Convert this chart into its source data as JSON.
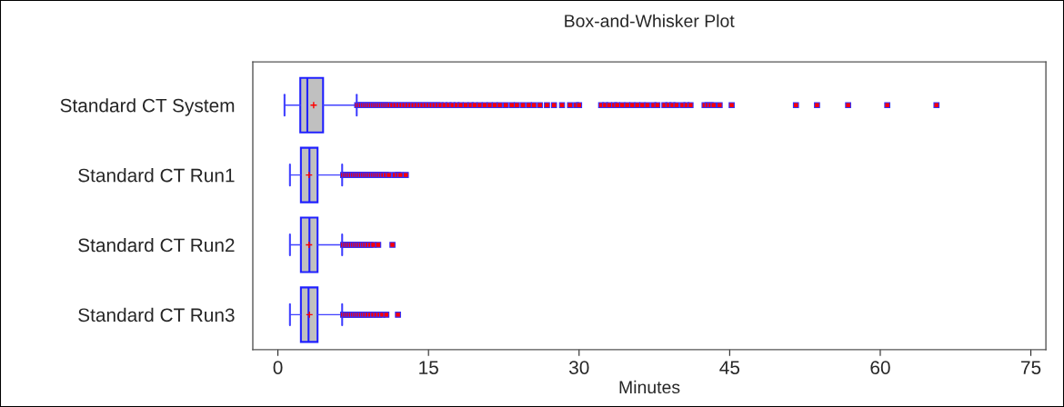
{
  "chart_data": {
    "type": "box",
    "title": "Box-and-Whisker Plot",
    "xlabel": "Minutes",
    "orientation": "horizontal",
    "categories": [
      "Standard CT System",
      "Standard CT Run1",
      "Standard CT Run2",
      "Standard CT Run3"
    ],
    "xlim": [
      -2.5,
      76.5
    ],
    "xticks": [
      0,
      15,
      30,
      45,
      60,
      75
    ],
    "grid": false,
    "boxes": [
      {
        "low": 0.66,
        "q1": 2.23,
        "median": 2.93,
        "q3": 4.5,
        "high": 7.85,
        "mean": 3.56,
        "outliers": [
          7.9,
          8.1,
          8.3,
          8.5,
          8.7,
          8.9,
          9.1,
          9.3,
          9.5,
          9.7,
          9.9,
          10.1,
          10.3,
          10.5,
          10.7,
          10.9,
          11.1,
          11.4,
          11.7,
          12.0,
          12.3,
          12.6,
          12.9,
          13.2,
          13.5,
          13.8,
          14.1,
          14.4,
          14.7,
          15.0,
          15.3,
          15.6,
          15.9,
          16.2,
          16.6,
          17.0,
          17.4,
          17.8,
          18.2,
          18.7,
          19.2,
          19.6,
          20.1,
          20.6,
          21.1,
          21.6,
          22.1,
          22.7,
          23.3,
          23.8,
          24.4,
          25.0,
          25.5,
          26.1,
          26.8,
          27.5,
          28.3,
          29.1,
          29.7,
          30.0,
          32.2,
          32.6,
          33.0,
          33.5,
          33.8,
          34.3,
          34.8,
          35.3,
          35.8,
          36.3,
          36.8,
          37.4,
          37.8,
          38.5,
          38.9,
          39.3,
          39.7,
          40.3,
          40.7,
          41.1,
          42.5,
          42.8,
          43.1,
          43.4,
          44.0,
          45.2,
          51.6,
          53.7,
          56.8,
          60.7,
          65.6
        ]
      },
      {
        "low": 1.2,
        "q1": 2.29,
        "median": 3.14,
        "q3": 3.95,
        "high": 6.4,
        "mean": 3.1,
        "outliers": [
          6.5,
          6.7,
          6.9,
          7.1,
          7.3,
          7.5,
          7.7,
          7.9,
          8.1,
          8.3,
          8.5,
          8.7,
          8.9,
          9.1,
          9.3,
          9.5,
          9.7,
          9.9,
          10.1,
          10.3,
          10.5,
          10.75,
          11.05,
          11.65,
          11.96,
          12.2,
          12.74
        ]
      },
      {
        "low": 1.2,
        "q1": 2.29,
        "median": 3.14,
        "q3": 3.95,
        "high": 6.4,
        "mean": 3.1,
        "outliers": [
          6.5,
          6.7,
          6.9,
          7.1,
          7.3,
          7.5,
          7.7,
          7.9,
          8.1,
          8.3,
          8.5,
          8.7,
          8.93,
          9.2,
          9.5,
          9.99,
          11.41
        ]
      },
      {
        "low": 1.2,
        "q1": 2.29,
        "median": 3.05,
        "q3": 3.95,
        "high": 6.4,
        "mean": 3.14,
        "outliers": [
          6.5,
          6.7,
          6.9,
          7.1,
          7.3,
          7.5,
          7.7,
          7.9,
          8.1,
          8.3,
          8.5,
          8.7,
          8.93,
          9.2,
          9.5,
          9.8,
          10.1,
          10.4,
          10.8,
          11.96
        ]
      }
    ]
  }
}
